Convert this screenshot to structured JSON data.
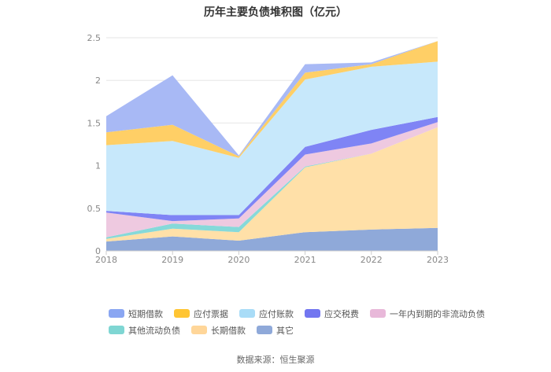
{
  "chart_data": {
    "type": "area",
    "title": "历年主要负债堆积图（亿元）",
    "source": "数据来源：恒生聚源",
    "x": [
      "2018",
      "2019",
      "2020",
      "2021",
      "2022",
      "2023"
    ],
    "y_ticks": [
      "0",
      "0.5",
      "1",
      "1.5",
      "2",
      "2.5"
    ],
    "ylim": [
      0,
      2.5
    ],
    "stacked": true,
    "grid": true,
    "legend_position": "bottom",
    "series": [
      {
        "name": "其它",
        "color": "#8fa9d9",
        "values": [
          0.11,
          0.17,
          0.12,
          0.22,
          0.25,
          0.27
        ]
      },
      {
        "name": "长期借款",
        "color": "#ffe0a8",
        "values": [
          0.03,
          0.09,
          0.1,
          0.76,
          0.89,
          1.18
        ]
      },
      {
        "name": "其他流动负债",
        "color": "#86d9d9",
        "values": [
          0.02,
          0.06,
          0.06,
          0.01,
          0.0,
          0.0
        ]
      },
      {
        "name": "一年内到期的非流动负债",
        "color": "#eec9e0",
        "values": [
          0.29,
          0.03,
          0.1,
          0.14,
          0.12,
          0.06
        ]
      },
      {
        "name": "应交税费",
        "color": "#7f84f5",
        "values": [
          0.02,
          0.07,
          0.04,
          0.09,
          0.16,
          0.06
        ]
      },
      {
        "name": "应付账款",
        "color": "#c7e8fb",
        "values": [
          0.77,
          0.87,
          0.67,
          0.79,
          0.74,
          0.65
        ]
      },
      {
        "name": "应付票据",
        "color": "#ffcf66",
        "values": [
          0.15,
          0.19,
          0.02,
          0.08,
          0.03,
          0.24
        ]
      },
      {
        "name": "短期借款",
        "color": "#a8b9f5",
        "values": [
          0.19,
          0.58,
          0.01,
          0.1,
          0.02,
          0.0
        ]
      }
    ],
    "legend_order": [
      "短期借款",
      "应付票据",
      "应付账款",
      "应交税费",
      "一年内到期的非流动负债",
      "其他流动负债",
      "长期借款",
      "其它"
    ],
    "legend_colors": [
      "#8aa6f2",
      "#ffc533",
      "#a9dcf7",
      "#7276f0",
      "#e8b8d9",
      "#7fd6d3",
      "#ffd699",
      "#8fa9d9"
    ]
  }
}
